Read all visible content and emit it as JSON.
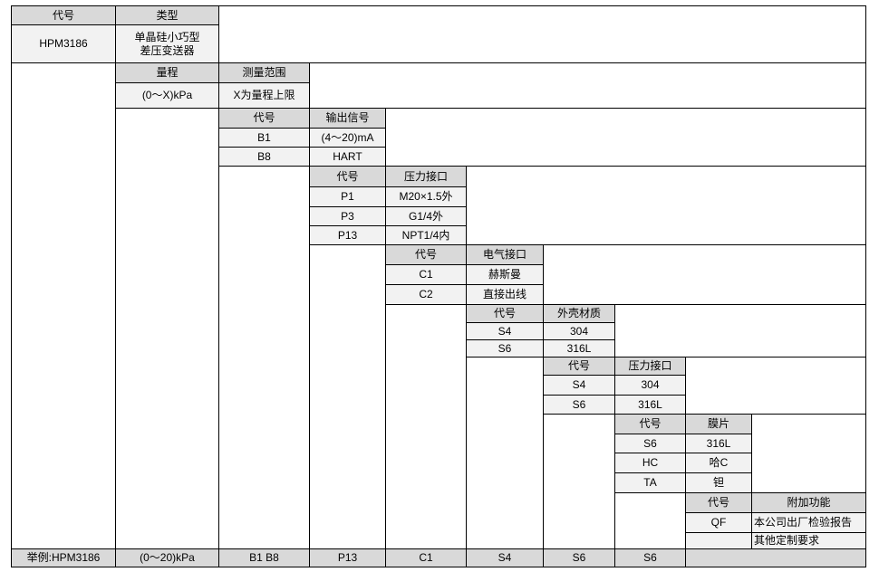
{
  "colors": {
    "header_bg": "#d9d9d9",
    "value_bg": "#f2f2f2",
    "border": "#000000"
  },
  "sections": [
    {
      "headers": [
        "代号",
        "类型"
      ],
      "rows": [
        [
          "HPM3186",
          "单晶硅小巧型\n差压变送器"
        ]
      ]
    },
    {
      "headers": [
        "量程",
        "测量范围"
      ],
      "rows": [
        [
          "(0～X)kPa",
          "X为量程上限"
        ]
      ]
    },
    {
      "headers": [
        "代号",
        "输出信号"
      ],
      "rows": [
        [
          "B1",
          "(4～20)mA"
        ],
        [
          "B8",
          "HART"
        ]
      ]
    },
    {
      "headers": [
        "代号",
        "压力接口"
      ],
      "rows": [
        [
          "P1",
          "M20×1.5外"
        ],
        [
          "P3",
          "G1/4外"
        ],
        [
          "P13",
          "NPT1/4内"
        ]
      ]
    },
    {
      "headers": [
        "代号",
        "电气接口"
      ],
      "rows": [
        [
          "C1",
          "赫斯曼"
        ],
        [
          "C2",
          "直接出线"
        ]
      ]
    },
    {
      "headers": [
        "代号",
        "外壳材质"
      ],
      "rows": [
        [
          "S4",
          "304"
        ],
        [
          "S6",
          "316L"
        ]
      ]
    },
    {
      "headers": [
        "代号",
        "压力接口"
      ],
      "rows": [
        [
          "S4",
          "304"
        ],
        [
          "S6",
          "316L"
        ]
      ]
    },
    {
      "headers": [
        "代号",
        "膜片"
      ],
      "rows": [
        [
          "S6",
          "316L"
        ],
        [
          "HC",
          "哈C"
        ],
        [
          "TA",
          "钽"
        ]
      ]
    },
    {
      "headers": [
        "代号",
        "附加功能"
      ],
      "rows": [
        [
          "QF",
          "本公司出厂检验报告"
        ],
        [
          "",
          "其他定制要求"
        ]
      ]
    }
  ],
  "example_row": [
    "举例:HPM3186",
    "(0～20)kPa",
    "B1 B8",
    "P13",
    "C1",
    "S4",
    "S6",
    "S6",
    ""
  ]
}
